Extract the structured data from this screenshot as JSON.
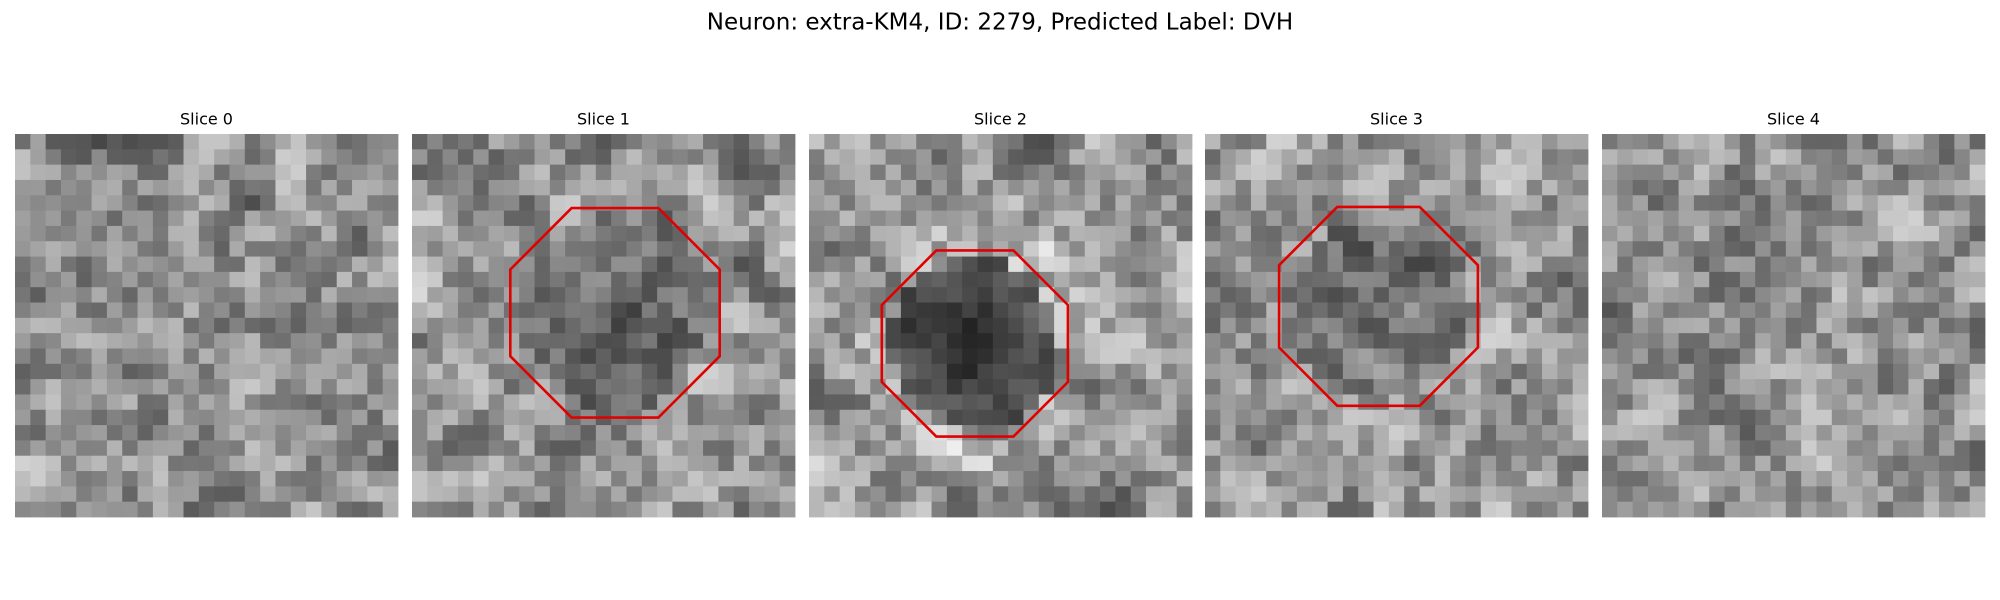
{
  "title": "Neuron: extra-KM4, ID: 2279, Predicted Label: DVH",
  "panels": [
    {
      "title": "Slice 0"
    },
    {
      "title": "Slice 1"
    },
    {
      "title": "Slice 2"
    },
    {
      "title": "Slice 3"
    },
    {
      "title": "Slice 4"
    }
  ]
}
